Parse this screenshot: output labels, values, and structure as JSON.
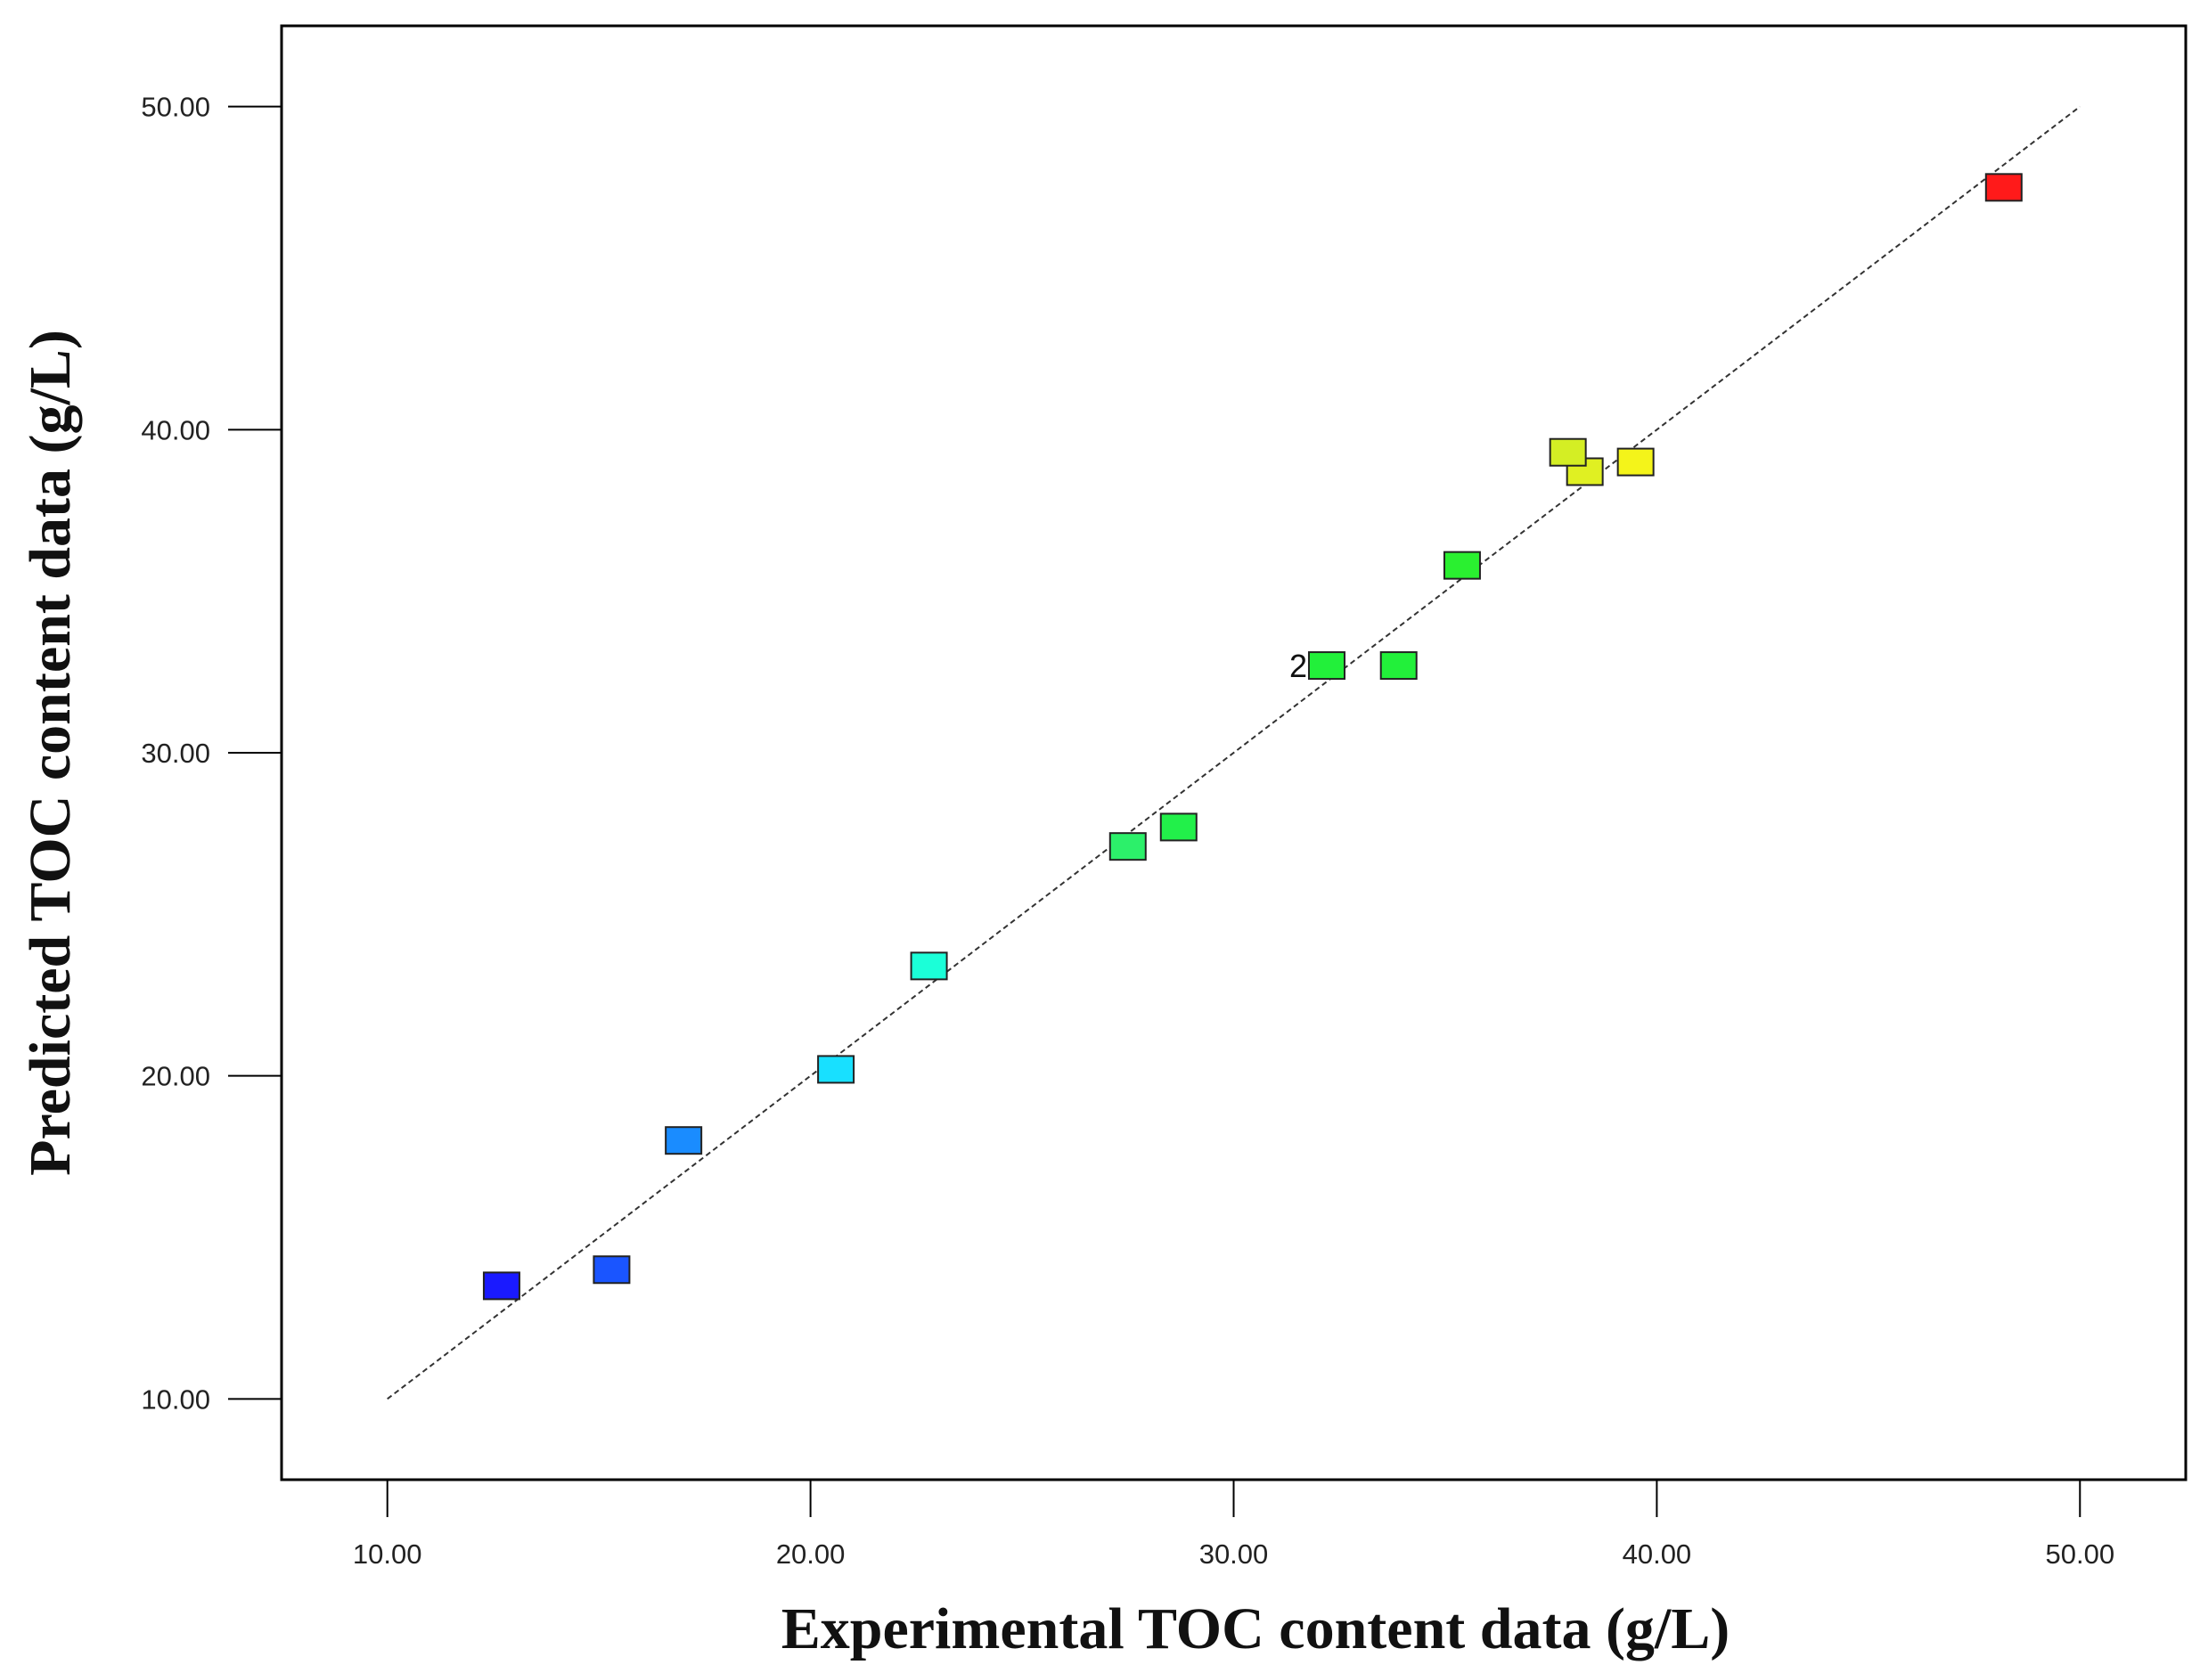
{
  "chart_data": {
    "type": "scatter",
    "title": "",
    "xlabel": "Experimental TOC content data (g/L)",
    "ylabel": "Predicted TOC content data (g/L)",
    "xlim": [
      7.5,
      52.5
    ],
    "ylim": [
      7.5,
      52.5
    ],
    "x_ticks": [
      10,
      20,
      30,
      40,
      50
    ],
    "y_ticks": [
      10,
      20,
      30,
      40,
      50
    ],
    "x_tick_labels": [
      "10.00",
      "20.00",
      "30.00",
      "40.00",
      "50.00"
    ],
    "y_tick_labels": [
      "10.00",
      "20.00",
      "30.00",
      "40.00",
      "50.00"
    ],
    "grid": false,
    "reference_line": {
      "x": [
        10,
        50
      ],
      "y": [
        10,
        50
      ],
      "style": "dashed"
    },
    "points": [
      {
        "x": 12.7,
        "y": 13.5,
        "color": "#1a1aff"
      },
      {
        "x": 15.3,
        "y": 14.0,
        "color": "#1a55ff"
      },
      {
        "x": 17.0,
        "y": 18.0,
        "color": "#1a8cff"
      },
      {
        "x": 20.6,
        "y": 20.2,
        "color": "#18e0ff"
      },
      {
        "x": 22.8,
        "y": 23.4,
        "color": "#1bffd8"
      },
      {
        "x": 27.5,
        "y": 27.1,
        "color": "#2cf06a"
      },
      {
        "x": 28.7,
        "y": 27.7,
        "color": "#22f04a"
      },
      {
        "x": 32.2,
        "y": 32.7,
        "color": "#22f03a",
        "label": "2"
      },
      {
        "x": 33.9,
        "y": 32.7,
        "color": "#22f03a"
      },
      {
        "x": 35.4,
        "y": 35.8,
        "color": "#2af030"
      },
      {
        "x": 38.3,
        "y": 38.7,
        "color": "#e0f022"
      },
      {
        "x": 37.9,
        "y": 39.3,
        "color": "#d4ee24"
      },
      {
        "x": 39.5,
        "y": 39.0,
        "color": "#f4f41a"
      },
      {
        "x": 48.2,
        "y": 47.5,
        "color": "#ff1a1a"
      }
    ]
  }
}
